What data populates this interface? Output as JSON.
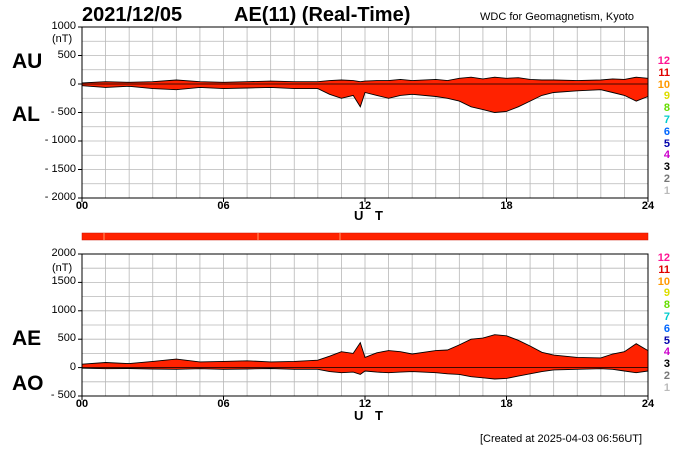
{
  "header": {
    "date": "2021/12/05",
    "title": "AE(11) (Real-Time)",
    "org": "WDC for Geomagnetism, Kyoto"
  },
  "footer": {
    "created": "[Created at 2025-04-03 06:56UT]"
  },
  "station_labels": [
    "12",
    "11",
    "10",
    "9",
    "8",
    "7",
    "6",
    "5",
    "4",
    "3",
    "2",
    "1"
  ],
  "station_colors": [
    "#ff1493",
    "#e00000",
    "#ff9900",
    "#dddd00",
    "#66dd00",
    "#00cccc",
    "#0066ff",
    "#0000aa",
    "#cc00cc",
    "#000000",
    "#777777",
    "#bbbbbb"
  ],
  "chart_data": [
    {
      "type": "area",
      "panel": "top",
      "label_upper": "AU",
      "label_lower": "AL",
      "unit": "(nT)",
      "ylim": [
        -2000,
        1000
      ],
      "yticks": [
        1000,
        500,
        0,
        -500,
        -1000,
        -1500,
        -2000
      ],
      "ytick_labels": [
        "1000",
        "500",
        "0",
        "- 500",
        "- 1000",
        "- 1500",
        "- 2000"
      ],
      "xlabel": "U T",
      "xlim": [
        0,
        24
      ],
      "xticks": [
        0,
        6,
        12,
        18,
        24
      ],
      "xtick_labels": [
        "00",
        "06",
        "12",
        "18",
        "24"
      ],
      "grid": true,
      "fill_color": "#ff2200",
      "x": [
        0,
        1,
        2,
        3,
        4,
        5,
        6,
        7,
        8,
        9,
        10,
        10.5,
        11,
        11.5,
        11.8,
        12,
        12.5,
        13,
        13.5,
        14,
        15,
        15.5,
        16,
        16.5,
        17,
        17.5,
        18,
        18.5,
        19,
        19.5,
        20,
        21,
        22,
        22.5,
        23,
        23.5,
        24
      ],
      "series": [
        {
          "name": "AU",
          "values": [
            20,
            40,
            30,
            40,
            70,
            40,
            30,
            40,
            50,
            40,
            40,
            60,
            70,
            60,
            40,
            50,
            60,
            60,
            80,
            60,
            80,
            60,
            100,
            120,
            90,
            120,
            100,
            110,
            80,
            70,
            70,
            60,
            70,
            90,
            80,
            120,
            100
          ]
        },
        {
          "name": "AL",
          "values": [
            -30,
            -60,
            -40,
            -80,
            -100,
            -60,
            -80,
            -70,
            -60,
            -80,
            -80,
            -180,
            -250,
            -200,
            -400,
            -150,
            -200,
            -250,
            -200,
            -180,
            -220,
            -250,
            -300,
            -400,
            -450,
            -500,
            -480,
            -400,
            -300,
            -200,
            -150,
            -120,
            -100,
            -150,
            -200,
            -300,
            -220
          ]
        }
      ]
    },
    {
      "type": "area",
      "panel": "bottom",
      "label_upper": "AE",
      "label_lower": "AO",
      "unit": "(nT)",
      "ylim": [
        -500,
        2000
      ],
      "yticks": [
        2000,
        1500,
        1000,
        500,
        0,
        -500
      ],
      "ytick_labels": [
        "2000",
        "1500",
        "1000",
        "500",
        "0",
        "- 500"
      ],
      "xlabel": "U T",
      "xlim": [
        0,
        24
      ],
      "xticks": [
        0,
        6,
        12,
        18,
        24
      ],
      "xtick_labels": [
        "00",
        "06",
        "12",
        "18",
        "24"
      ],
      "grid": true,
      "fill_color": "#ff2200",
      "x": [
        0,
        1,
        2,
        3,
        4,
        5,
        6,
        7,
        8,
        9,
        10,
        10.5,
        11,
        11.5,
        11.8,
        12,
        12.5,
        13,
        13.5,
        14,
        15,
        15.5,
        16,
        16.5,
        17,
        17.5,
        18,
        18.5,
        19,
        19.5,
        20,
        21,
        22,
        22.5,
        23,
        23.5,
        24
      ],
      "series": [
        {
          "name": "AE",
          "values": [
            60,
            90,
            70,
            110,
            150,
            100,
            110,
            120,
            100,
            110,
            130,
            200,
            280,
            250,
            440,
            180,
            260,
            300,
            280,
            240,
            300,
            310,
            400,
            500,
            520,
            580,
            560,
            480,
            380,
            270,
            220,
            180,
            170,
            240,
            280,
            420,
            300
          ]
        },
        {
          "name": "AO",
          "values": [
            -10,
            -20,
            -15,
            -25,
            -30,
            -20,
            -30,
            -25,
            -15,
            -30,
            -30,
            -70,
            -90,
            -80,
            -120,
            -60,
            -80,
            -90,
            -80,
            -70,
            -90,
            -110,
            -120,
            -160,
            -180,
            -200,
            -190,
            -150,
            -110,
            -70,
            -40,
            -30,
            -20,
            -30,
            -60,
            -90,
            -60
          ]
        }
      ]
    }
  ]
}
